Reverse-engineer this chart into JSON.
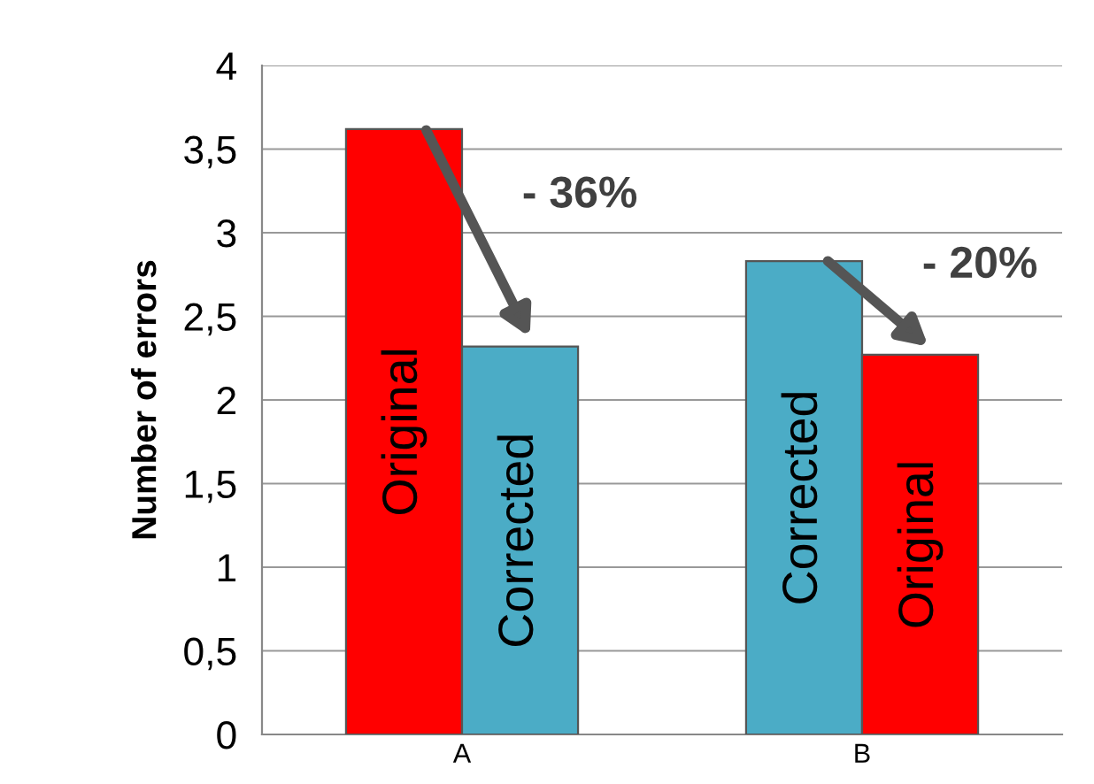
{
  "chart_data": {
    "type": "bar",
    "ylabel": "Number of errors",
    "categories": [
      "A",
      "B"
    ],
    "series": [
      {
        "colors": [
          "#ff0000",
          "#4bacc6"
        ],
        "values": [
          3.62,
          2.83
        ],
        "value_labels": [
          "Original",
          "Corrected"
        ]
      },
      {
        "colors": [
          "#4bacc6",
          "#ff0000"
        ],
        "values": [
          2.32,
          2.27
        ],
        "value_labels": [
          "Corrected",
          "Original"
        ]
      }
    ],
    "ylim": [
      0,
      4
    ],
    "yticks": [
      0,
      {
        "value": 0.5,
        "label": "0,5"
      },
      1,
      {
        "value": 1.5,
        "label": "1,5"
      },
      2,
      {
        "value": 2.5,
        "label": "2,5"
      },
      3,
      {
        "value": 3.5,
        "label": "3,5"
      },
      4
    ],
    "grid": "y",
    "legend": false,
    "annotations": [
      "- 36%",
      "- 20%"
    ]
  }
}
